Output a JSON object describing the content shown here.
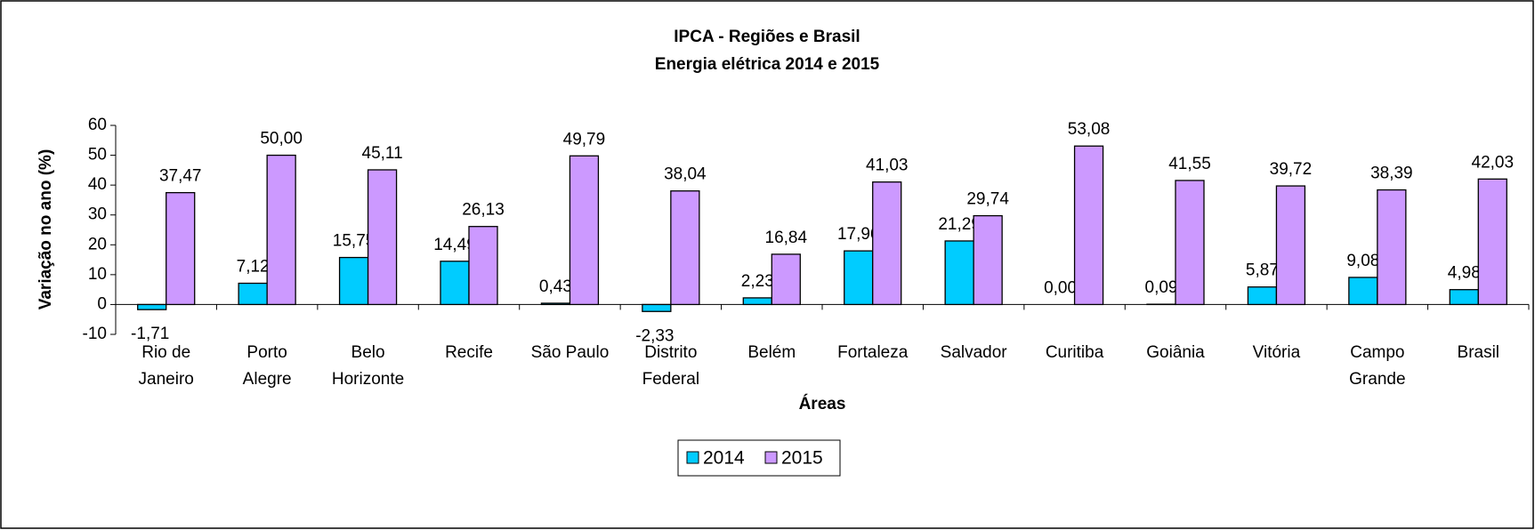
{
  "chart_data": {
    "type": "bar",
    "title": "IPCA - Regiões e Brasil",
    "subtitle": "Energia elétrica 2014 e 2015",
    "x_label": "Áreas",
    "y_label": "Variação no ano (%)",
    "categories": [
      "Rio de Janeiro",
      "Porto Alegre",
      "Belo Horizonte",
      "Recife",
      "São Paulo",
      "Distrito Federal",
      "Belém",
      "Fortaleza",
      "Salvador",
      "Curitiba",
      "Goiânia",
      "Vitória",
      "Campo Grande",
      "Brasil"
    ],
    "series": [
      {
        "name": "2014",
        "color": "#00ccff",
        "values": [
          -1.71,
          7.12,
          15.75,
          14.49,
          0.43,
          -2.33,
          2.23,
          17.96,
          21.29,
          0.0,
          0.09,
          5.87,
          9.08,
          4.98
        ],
        "value_labels": [
          "-1,71",
          "7,12",
          "15,75",
          "14,49",
          "0,43",
          "-2,33",
          "2,23",
          "17,96",
          "21,29",
          "0,00",
          "0,09",
          "5,87",
          "9,08",
          "4,98"
        ]
      },
      {
        "name": "2015",
        "color": "#cc99ff",
        "values": [
          37.47,
          50.0,
          45.11,
          26.13,
          49.79,
          38.04,
          16.84,
          41.03,
          29.74,
          53.08,
          41.55,
          39.72,
          38.39,
          42.03
        ],
        "value_labels": [
          "37,47",
          "50,00",
          "45,11",
          "26,13",
          "49,79",
          "38,04",
          "16,84",
          "41,03",
          "29,74",
          "53,08",
          "41,55",
          "39,72",
          "38,39",
          "42,03"
        ]
      }
    ],
    "ylim": [
      -10,
      60
    ],
    "yticks": [
      -10,
      0,
      10,
      20,
      30,
      40,
      50,
      60
    ],
    "grid": false,
    "legend": "bottom"
  }
}
